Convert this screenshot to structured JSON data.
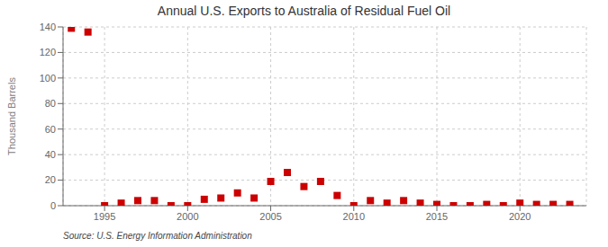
{
  "chart_data": {
    "type": "scatter",
    "title": "Annual U.S. Exports to Australia of Residual Fuel Oil",
    "ylabel": "Thousand Barrels",
    "source": "Source: U.S. Energy Information Administration",
    "x": [
      1993,
      1994,
      1995,
      1996,
      1997,
      1998,
      1999,
      2000,
      2001,
      2002,
      2003,
      2004,
      2005,
      2006,
      2007,
      2008,
      2009,
      2010,
      2011,
      2012,
      2013,
      2014,
      2015,
      2016,
      2017,
      2018,
      2019,
      2020,
      2021,
      2022,
      2023
    ],
    "values": [
      139,
      136,
      0,
      2,
      4,
      4,
      0,
      0,
      5,
      6,
      10,
      6,
      19,
      26,
      15,
      19,
      8,
      0,
      4,
      2,
      4,
      2,
      1,
      0,
      0,
      1,
      0,
      2,
      1,
      1,
      1
    ],
    "color": "#cc0000",
    "marker": "square",
    "xlim": [
      1992.5,
      2024
    ],
    "xticks": [
      1995,
      2000,
      2005,
      2010,
      2015,
      2020
    ],
    "ylim": [
      0,
      140
    ],
    "yticks": [
      0,
      20,
      40,
      60,
      80,
      100,
      120,
      140
    ],
    "grid": true
  }
}
